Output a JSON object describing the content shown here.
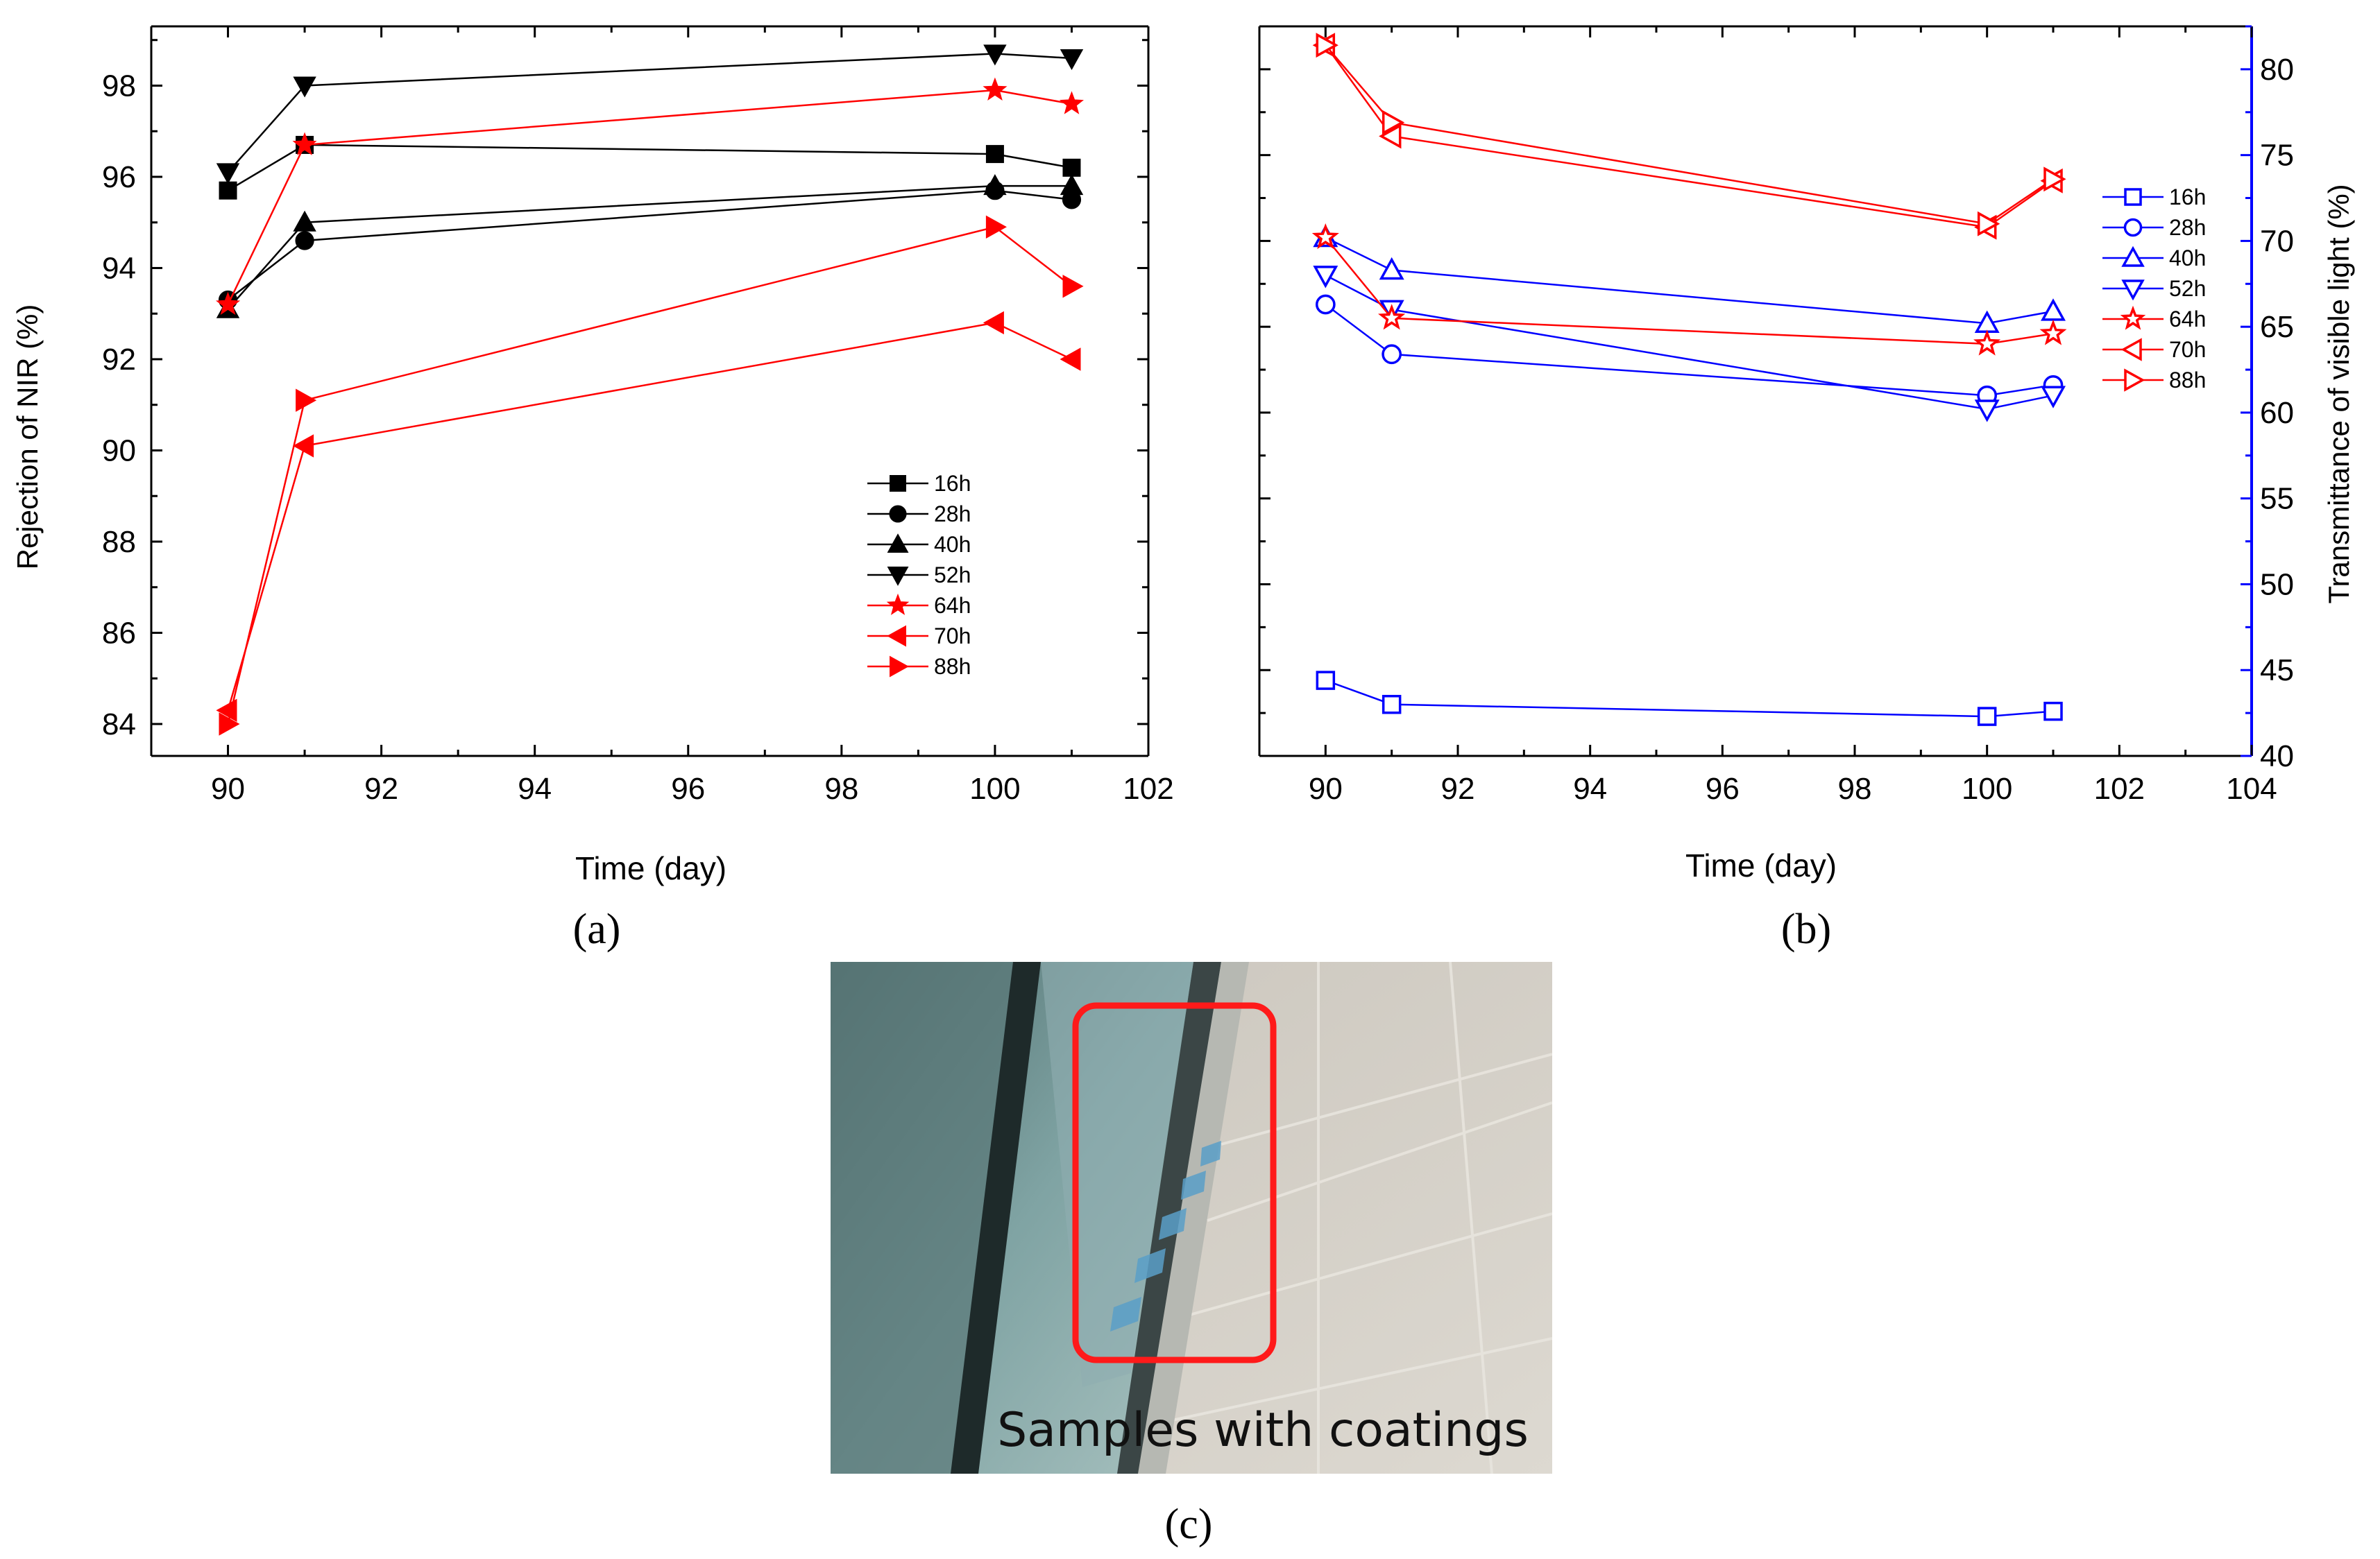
{
  "chart_data": [
    {
      "id": "a",
      "type": "line",
      "panel_label": "(a)",
      "xlabel": "Time (day)",
      "ylabel": "Rejection of NIR (%)",
      "xlim": [
        89,
        102
      ],
      "ylim": [
        83.3,
        99.3
      ],
      "xticks": [
        90,
        92,
        94,
        96,
        98,
        100,
        102
      ],
      "yticks": [
        84,
        86,
        88,
        90,
        92,
        94,
        96,
        98
      ],
      "x": [
        90,
        91,
        100,
        101
      ],
      "series": [
        {
          "name": "16h",
          "color": "#000000",
          "marker": "square",
          "filled": true,
          "values": [
            95.7,
            96.7,
            96.5,
            96.2
          ]
        },
        {
          "name": "28h",
          "color": "#000000",
          "marker": "circle",
          "filled": true,
          "values": [
            93.3,
            94.6,
            95.7,
            95.5
          ]
        },
        {
          "name": "40h",
          "color": "#000000",
          "marker": "triangle-up",
          "filled": true,
          "values": [
            93.1,
            95.0,
            95.8,
            95.8
          ]
        },
        {
          "name": "52h",
          "color": "#000000",
          "marker": "triangle-down",
          "filled": true,
          "values": [
            96.1,
            98.0,
            98.7,
            98.6
          ]
        },
        {
          "name": "64h",
          "color": "#ff0000",
          "marker": "star",
          "filled": true,
          "values": [
            93.2,
            96.7,
            97.9,
            97.6
          ]
        },
        {
          "name": "70h",
          "color": "#ff0000",
          "marker": "triangle-left",
          "filled": true,
          "values": [
            84.3,
            90.1,
            92.8,
            92.0
          ]
        },
        {
          "name": "88h",
          "color": "#ff0000",
          "marker": "triangle-right",
          "filled": true,
          "values": [
            84.0,
            91.1,
            94.9,
            93.6
          ]
        }
      ]
    },
    {
      "id": "b",
      "type": "line",
      "panel_label": "(b)",
      "xlabel": "Time (day)",
      "ylabel": "Transmittance of visible light (%)",
      "xlim": [
        89,
        104
      ],
      "ylim": [
        40,
        82.5
      ],
      "xticks": [
        90,
        92,
        94,
        96,
        98,
        100,
        102,
        104
      ],
      "yticks": [
        40,
        45,
        50,
        55,
        60,
        65,
        70,
        75,
        80
      ],
      "y_axis_side": "right",
      "y_axis_color": "#0000ff",
      "x": [
        90,
        91,
        100,
        101
      ],
      "series": [
        {
          "name": "16h",
          "color": "#0000ff",
          "marker": "square",
          "filled": false,
          "values": [
            44.4,
            43.0,
            42.3,
            42.6
          ]
        },
        {
          "name": "28h",
          "color": "#0000ff",
          "marker": "circle",
          "filled": false,
          "values": [
            66.3,
            63.4,
            61.0,
            61.6
          ]
        },
        {
          "name": "40h",
          "color": "#0000ff",
          "marker": "triangle-up",
          "filled": false,
          "values": [
            70.2,
            68.3,
            65.2,
            65.9
          ]
        },
        {
          "name": "52h",
          "color": "#0000ff",
          "marker": "triangle-down",
          "filled": false,
          "values": [
            68.0,
            66.0,
            60.2,
            61.0
          ]
        },
        {
          "name": "64h",
          "color": "#ff0000",
          "marker": "star",
          "filled": false,
          "values": [
            70.2,
            65.5,
            64.0,
            64.6
          ]
        },
        {
          "name": "70h",
          "color": "#ff0000",
          "marker": "triangle-left",
          "filled": false,
          "values": [
            81.4,
            76.1,
            70.8,
            73.5
          ]
        },
        {
          "name": "88h",
          "color": "#ff0000",
          "marker": "triangle-right",
          "filled": false,
          "values": [
            81.4,
            76.9,
            71.0,
            73.6
          ]
        }
      ]
    }
  ],
  "photo": {
    "panel_label": "(c)",
    "caption": "Samples with coatings"
  }
}
